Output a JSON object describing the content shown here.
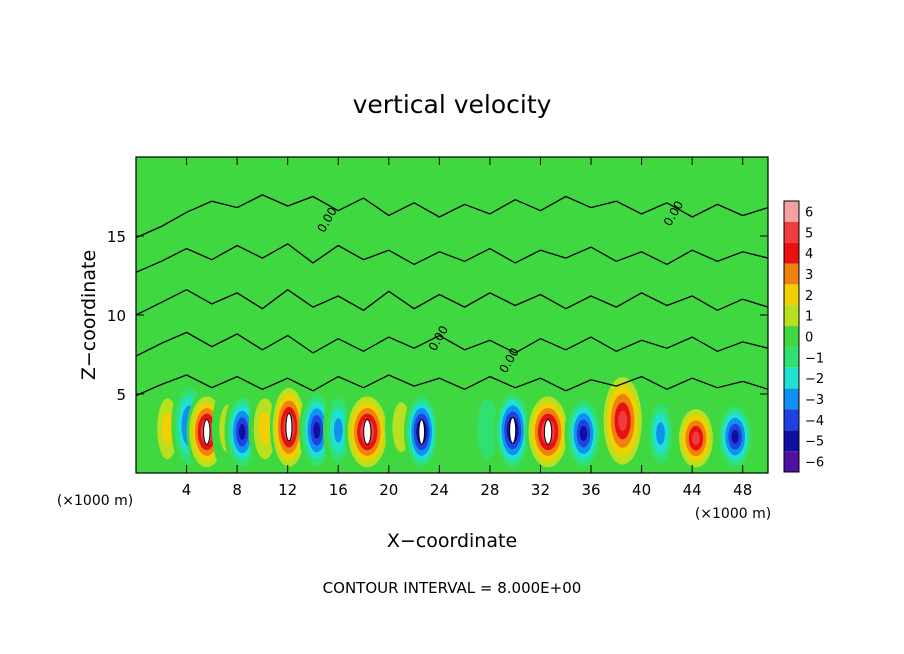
{
  "chart_data": {
    "type": "heatmap",
    "title": "vertical velocity",
    "xlabel": "X−coordinate",
    "ylabel": "Z−coordinate",
    "x_unit_left": "(×1000 m)",
    "x_unit_right": "(×1000 m)",
    "footer": "CONTOUR INTERVAL = 8.000E+00",
    "xlim": [
      0,
      50
    ],
    "ylim": [
      0,
      20
    ],
    "xticks": [
      4,
      8,
      12,
      16,
      20,
      24,
      28,
      32,
      36,
      40,
      44,
      48
    ],
    "xtick_labels": [
      "4",
      "8",
      "12",
      "16",
      "20",
      "24",
      "28",
      "32",
      "36",
      "40",
      "44",
      "48"
    ],
    "yticks": [
      5,
      10,
      15
    ],
    "ytick_labels": [
      "5",
      "10",
      "15"
    ],
    "colorbar": {
      "values": [
        6,
        5,
        4,
        3,
        2,
        1,
        0,
        -1,
        -2,
        -3,
        -4,
        -5,
        -6
      ],
      "labels": [
        "6",
        "5",
        "4",
        "3",
        "2",
        "1",
        "0",
        "−1",
        "−2",
        "−3",
        "−4",
        "−5",
        "−6"
      ],
      "colors": [
        "#f7a0a0",
        "#f03c3c",
        "#e81010",
        "#f08010",
        "#f0d000",
        "#b8e020",
        "#40d840",
        "#30e070",
        "#20e0d0",
        "#1090f0",
        "#2040e0",
        "#1010a0",
        "#5010a0"
      ]
    },
    "contour_label": "0.00",
    "background_color": "#40d840",
    "cells": [
      {
        "x": 2.5,
        "z": 2.8,
        "w": 1.2,
        "value": 1.8
      },
      {
        "x": 4.2,
        "z": 3.0,
        "w": 1.4,
        "value": -3.5
      },
      {
        "x": 5.6,
        "z": 2.6,
        "w": 1.6,
        "value": 5.5
      },
      {
        "x": 7.3,
        "z": 2.8,
        "w": 1.3,
        "value": 0.5
      },
      {
        "x": 8.4,
        "z": 2.6,
        "w": 1.4,
        "value": -5.2
      },
      {
        "x": 10.2,
        "z": 2.8,
        "w": 1.3,
        "value": 2.0
      },
      {
        "x": 12.1,
        "z": 2.9,
        "w": 1.5,
        "value": 5.8
      },
      {
        "x": 14.3,
        "z": 2.7,
        "w": 1.4,
        "value": -4.6
      },
      {
        "x": 16.0,
        "z": 2.7,
        "w": 1.2,
        "value": -3.2
      },
      {
        "x": 18.3,
        "z": 2.6,
        "w": 1.8,
        "value": 6.0
      },
      {
        "x": 21.0,
        "z": 2.9,
        "w": 1.3,
        "value": 0.8
      },
      {
        "x": 22.6,
        "z": 2.6,
        "w": 1.4,
        "value": -5.8
      },
      {
        "x": 25.0,
        "z": 2.7,
        "w": 1.3,
        "value": 0.4
      },
      {
        "x": 27.8,
        "z": 2.8,
        "w": 1.2,
        "value": -1.5
      },
      {
        "x": 29.8,
        "z": 2.7,
        "w": 1.5,
        "value": -5.6
      },
      {
        "x": 32.6,
        "z": 2.6,
        "w": 1.8,
        "value": 6.0
      },
      {
        "x": 35.4,
        "z": 2.5,
        "w": 1.5,
        "value": -5.0
      },
      {
        "x": 38.5,
        "z": 3.3,
        "w": 1.8,
        "value": 4.5
      },
      {
        "x": 41.5,
        "z": 2.5,
        "w": 1.2,
        "value": -3.0
      },
      {
        "x": 44.3,
        "z": 2.2,
        "w": 1.6,
        "value": 4.6
      },
      {
        "x": 47.4,
        "z": 2.3,
        "w": 1.5,
        "value": -4.8
      }
    ],
    "contours": [
      [
        [
          0,
          14.9
        ],
        [
          2,
          15.6
        ],
        [
          4,
          16.5
        ],
        [
          6,
          17.2
        ],
        [
          8,
          16.8
        ],
        [
          10,
          17.6
        ],
        [
          12,
          16.9
        ],
        [
          14,
          17.5
        ],
        [
          16,
          16.6
        ],
        [
          18,
          17.4
        ],
        [
          20,
          16.3
        ],
        [
          22,
          17.1
        ],
        [
          24,
          16.2
        ],
        [
          26,
          17.0
        ],
        [
          28,
          16.4
        ],
        [
          30,
          17.3
        ],
        [
          32,
          16.6
        ],
        [
          34,
          17.5
        ],
        [
          36,
          16.8
        ],
        [
          38,
          17.2
        ],
        [
          40,
          16.4
        ],
        [
          42,
          17.1
        ],
        [
          44,
          16.2
        ],
        [
          46,
          17.0
        ],
        [
          48,
          16.3
        ],
        [
          50,
          16.8
        ]
      ],
      [
        [
          0,
          12.7
        ],
        [
          2,
          13.4
        ],
        [
          4,
          14.2
        ],
        [
          6,
          13.5
        ],
        [
          8,
          14.4
        ],
        [
          10,
          13.6
        ],
        [
          12,
          14.5
        ],
        [
          14,
          13.3
        ],
        [
          16,
          14.4
        ],
        [
          18,
          13.5
        ],
        [
          20,
          14.1
        ],
        [
          22,
          13.2
        ],
        [
          24,
          14.0
        ],
        [
          26,
          13.4
        ],
        [
          28,
          14.2
        ],
        [
          30,
          13.3
        ],
        [
          32,
          14.1
        ],
        [
          34,
          13.6
        ],
        [
          36,
          14.3
        ],
        [
          38,
          13.4
        ],
        [
          40,
          14.0
        ],
        [
          42,
          13.2
        ],
        [
          44,
          14.1
        ],
        [
          46,
          13.4
        ],
        [
          48,
          14.0
        ],
        [
          50,
          13.6
        ]
      ],
      [
        [
          0,
          10.0
        ],
        [
          2,
          10.8
        ],
        [
          4,
          11.6
        ],
        [
          6,
          10.7
        ],
        [
          8,
          11.4
        ],
        [
          10,
          10.4
        ],
        [
          12,
          11.6
        ],
        [
          14,
          10.5
        ],
        [
          16,
          11.2
        ],
        [
          18,
          10.3
        ],
        [
          20,
          11.5
        ],
        [
          22,
          10.4
        ],
        [
          24,
          11.3
        ],
        [
          26,
          10.5
        ],
        [
          28,
          11.4
        ],
        [
          30,
          10.6
        ],
        [
          32,
          11.3
        ],
        [
          34,
          10.4
        ],
        [
          36,
          11.2
        ],
        [
          38,
          10.5
        ],
        [
          40,
          11.4
        ],
        [
          42,
          10.6
        ],
        [
          44,
          11.2
        ],
        [
          46,
          10.3
        ],
        [
          48,
          11.0
        ],
        [
          50,
          10.5
        ]
      ],
      [
        [
          0,
          7.4
        ],
        [
          2,
          8.2
        ],
        [
          4,
          8.9
        ],
        [
          6,
          8.0
        ],
        [
          8,
          8.8
        ],
        [
          10,
          7.8
        ],
        [
          12,
          8.7
        ],
        [
          14,
          7.6
        ],
        [
          16,
          8.5
        ],
        [
          18,
          7.7
        ],
        [
          20,
          8.6
        ],
        [
          22,
          7.9
        ],
        [
          24,
          8.7
        ],
        [
          26,
          7.8
        ],
        [
          28,
          8.4
        ],
        [
          30,
          7.6
        ],
        [
          32,
          8.5
        ],
        [
          34,
          7.8
        ],
        [
          36,
          8.6
        ],
        [
          38,
          7.7
        ],
        [
          40,
          8.4
        ],
        [
          42,
          7.9
        ],
        [
          44,
          8.6
        ],
        [
          46,
          7.7
        ],
        [
          48,
          8.3
        ],
        [
          50,
          7.9
        ]
      ],
      [
        [
          0,
          4.9
        ],
        [
          2,
          5.6
        ],
        [
          4,
          6.2
        ],
        [
          6,
          5.4
        ],
        [
          8,
          6.1
        ],
        [
          10,
          5.3
        ],
        [
          12,
          6.0
        ],
        [
          14,
          5.2
        ],
        [
          16,
          6.1
        ],
        [
          18,
          5.4
        ],
        [
          20,
          6.2
        ],
        [
          22,
          5.5
        ],
        [
          24,
          6.0
        ],
        [
          26,
          5.3
        ],
        [
          28,
          6.1
        ],
        [
          30,
          5.4
        ],
        [
          32,
          6.0
        ],
        [
          34,
          5.2
        ],
        [
          36,
          5.9
        ],
        [
          38,
          5.5
        ],
        [
          40,
          6.1
        ],
        [
          42,
          5.3
        ],
        [
          44,
          6.0
        ],
        [
          46,
          5.4
        ],
        [
          48,
          5.8
        ],
        [
          50,
          5.3
        ]
      ]
    ],
    "contour_label_positions": [
      [
        15.4,
        15.9
      ],
      [
        42.8,
        16.3
      ],
      [
        24.2,
        8.4
      ],
      [
        29.8,
        7.0
      ]
    ]
  }
}
